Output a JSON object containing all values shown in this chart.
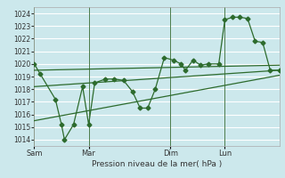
{
  "background_color": "#cce8ec",
  "grid_color": "#ffffff",
  "line_color": "#2d6b2d",
  "vline_color": "#4a7a4a",
  "xlabel": "Pression niveau de la mer( hPa )",
  "ylim": [
    1013.5,
    1024.5
  ],
  "yticks": [
    1014,
    1015,
    1016,
    1017,
    1018,
    1019,
    1020,
    1021,
    1022,
    1023,
    1024
  ],
  "xtick_labels": [
    "Sam",
    "Mar",
    "Dim",
    "Lun"
  ],
  "xtick_positions": [
    0,
    36,
    90,
    126
  ],
  "vline_positions": [
    0,
    36,
    90,
    126
  ],
  "xlim": [
    0,
    162
  ],
  "main_x": [
    0,
    4,
    14,
    18,
    20,
    26,
    32,
    36,
    40,
    47,
    53,
    59,
    65,
    70,
    75,
    80,
    86,
    92,
    97,
    100,
    105,
    110,
    115,
    122,
    126,
    131,
    136,
    141,
    146,
    151,
    156,
    162
  ],
  "main_y": [
    1020.0,
    1019.2,
    1017.2,
    1015.2,
    1014.0,
    1015.2,
    1018.2,
    1015.2,
    1018.5,
    1018.8,
    1018.8,
    1018.7,
    1017.8,
    1016.5,
    1016.5,
    1018.0,
    1020.5,
    1020.3,
    1020.0,
    1019.5,
    1020.3,
    1019.9,
    1020.0,
    1020.0,
    1023.5,
    1023.7,
    1023.7,
    1023.6,
    1021.8,
    1021.7,
    1019.5,
    1019.5
  ],
  "trend1_x": [
    0,
    162
  ],
  "trend1_y": [
    1019.5,
    1019.9
  ],
  "trend2_x": [
    0,
    162
  ],
  "trend2_y": [
    1018.2,
    1019.5
  ],
  "trend3_x": [
    0,
    162
  ],
  "trend3_y": [
    1015.5,
    1019.1
  ]
}
